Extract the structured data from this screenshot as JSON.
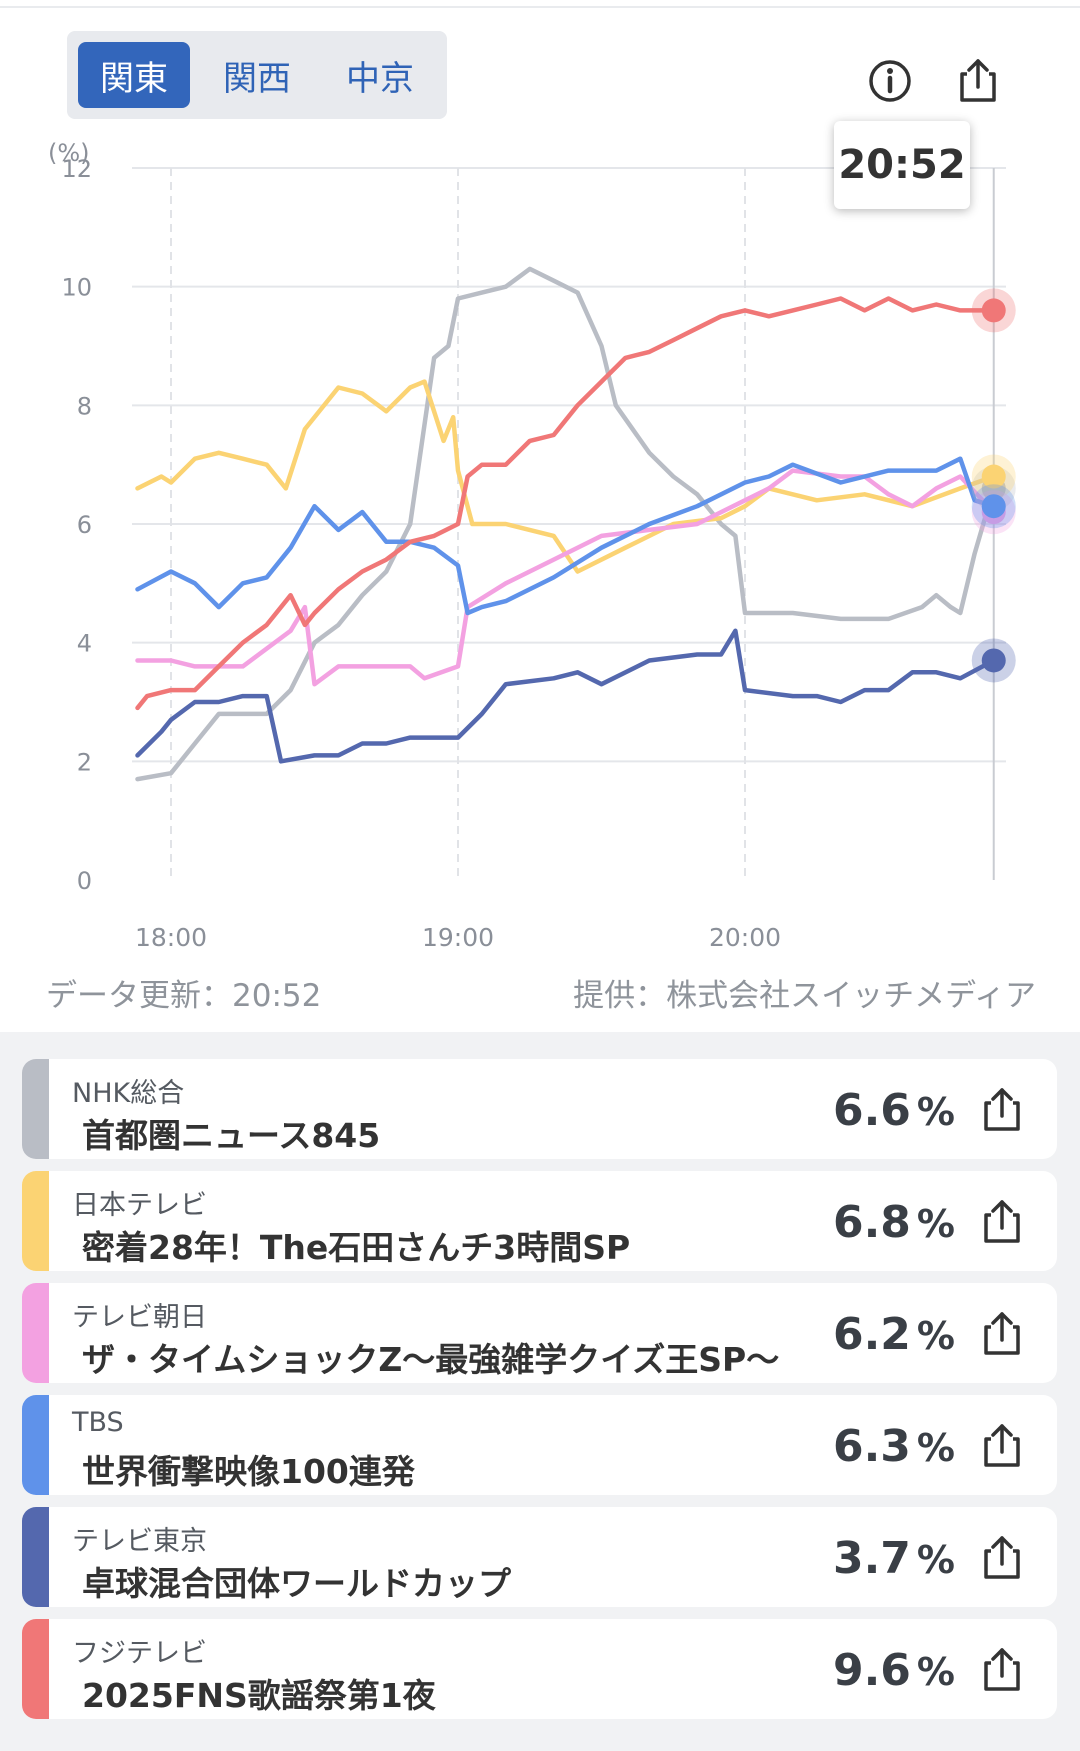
{
  "regions": {
    "tabs": [
      "関東",
      "関西",
      "中京"
    ],
    "active": "関東"
  },
  "toolbar": {
    "info_icon": "info-circle-icon",
    "share_icon": "share-upload-icon"
  },
  "tooltip": {
    "time": "20:52"
  },
  "footer": {
    "updated": "データ更新：20:52",
    "provider": "提供：株式会社スイッチメディア"
  },
  "chart_data": {
    "type": "line",
    "ylabel": "(%)",
    "ylim": [
      0,
      12
    ],
    "yticks": [
      "0",
      "2",
      "4",
      "6",
      "8",
      "10",
      "12"
    ],
    "xlabel": "",
    "xrange": [
      "17:53",
      "20:52"
    ],
    "xticks": [
      "18:00",
      "19:00",
      "20:00"
    ],
    "grid": true,
    "series": [
      {
        "name": "NHK総合",
        "color": "#b9bdc5",
        "points": [
          [
            "17:53",
            1.7
          ],
          [
            "18:00",
            1.8
          ],
          [
            "18:05",
            2.3
          ],
          [
            "18:10",
            2.8
          ],
          [
            "18:15",
            2.8
          ],
          [
            "18:20",
            2.8
          ],
          [
            "18:25",
            3.2
          ],
          [
            "18:30",
            4.0
          ],
          [
            "18:35",
            4.3
          ],
          [
            "18:40",
            4.8
          ],
          [
            "18:45",
            5.2
          ],
          [
            "18:50",
            6.0
          ],
          [
            "18:55",
            8.8
          ],
          [
            "18:58",
            9.0
          ],
          [
            "19:00",
            9.8
          ],
          [
            "19:05",
            9.9
          ],
          [
            "19:10",
            10.0
          ],
          [
            "19:15",
            10.3
          ],
          [
            "19:20",
            10.1
          ],
          [
            "19:25",
            9.9
          ],
          [
            "19:30",
            9.0
          ],
          [
            "19:33",
            8.0
          ],
          [
            "19:40",
            7.2
          ],
          [
            "19:45",
            6.8
          ],
          [
            "19:50",
            6.5
          ],
          [
            "19:55",
            6.0
          ],
          [
            "19:58",
            5.8
          ],
          [
            "20:00",
            4.5
          ],
          [
            "20:10",
            4.5
          ],
          [
            "20:20",
            4.4
          ],
          [
            "20:30",
            4.4
          ],
          [
            "20:37",
            4.6
          ],
          [
            "20:40",
            4.8
          ],
          [
            "20:43",
            4.6
          ],
          [
            "20:45",
            4.5
          ],
          [
            "20:48",
            5.5
          ],
          [
            "20:52",
            6.6
          ]
        ]
      },
      {
        "name": "日本テレビ",
        "color": "#fbd373",
        "points": [
          [
            "17:53",
            6.6
          ],
          [
            "17:58",
            6.8
          ],
          [
            "18:00",
            6.7
          ],
          [
            "18:05",
            7.1
          ],
          [
            "18:10",
            7.2
          ],
          [
            "18:15",
            7.1
          ],
          [
            "18:20",
            7.0
          ],
          [
            "18:24",
            6.6
          ],
          [
            "18:28",
            7.6
          ],
          [
            "18:35",
            8.3
          ],
          [
            "18:40",
            8.2
          ],
          [
            "18:45",
            7.9
          ],
          [
            "18:50",
            8.3
          ],
          [
            "18:53",
            8.4
          ],
          [
            "18:57",
            7.4
          ],
          [
            "18:59",
            7.8
          ],
          [
            "19:00",
            6.9
          ],
          [
            "19:03",
            6.0
          ],
          [
            "19:10",
            6.0
          ],
          [
            "19:20",
            5.8
          ],
          [
            "19:25",
            5.2
          ],
          [
            "19:35",
            5.6
          ],
          [
            "19:45",
            6.0
          ],
          [
            "19:55",
            6.1
          ],
          [
            "20:00",
            6.3
          ],
          [
            "20:05",
            6.6
          ],
          [
            "20:15",
            6.4
          ],
          [
            "20:25",
            6.5
          ],
          [
            "20:35",
            6.3
          ],
          [
            "20:45",
            6.6
          ],
          [
            "20:52",
            6.8
          ]
        ]
      },
      {
        "name": "テレビ朝日",
        "color": "#f3a1e1",
        "points": [
          [
            "17:53",
            3.7
          ],
          [
            "18:00",
            3.7
          ],
          [
            "18:05",
            3.6
          ],
          [
            "18:15",
            3.6
          ],
          [
            "18:25",
            4.2
          ],
          [
            "18:28",
            4.6
          ],
          [
            "18:30",
            3.3
          ],
          [
            "18:35",
            3.6
          ],
          [
            "18:45",
            3.6
          ],
          [
            "18:50",
            3.6
          ],
          [
            "18:53",
            3.4
          ],
          [
            "19:00",
            3.6
          ],
          [
            "19:02",
            4.6
          ],
          [
            "19:10",
            5.0
          ],
          [
            "19:20",
            5.4
          ],
          [
            "19:30",
            5.8
          ],
          [
            "19:40",
            5.9
          ],
          [
            "19:50",
            6.0
          ],
          [
            "20:00",
            6.4
          ],
          [
            "20:05",
            6.6
          ],
          [
            "20:10",
            6.9
          ],
          [
            "20:20",
            6.8
          ],
          [
            "20:25",
            6.8
          ],
          [
            "20:30",
            6.5
          ],
          [
            "20:35",
            6.3
          ],
          [
            "20:40",
            6.6
          ],
          [
            "20:45",
            6.8
          ],
          [
            "20:52",
            6.2
          ]
        ]
      },
      {
        "name": "TBS",
        "color": "#5f92ea",
        "points": [
          [
            "17:53",
            4.9
          ],
          [
            "18:00",
            5.2
          ],
          [
            "18:05",
            5.0
          ],
          [
            "18:10",
            4.6
          ],
          [
            "18:15",
            5.0
          ],
          [
            "18:20",
            5.1
          ],
          [
            "18:25",
            5.6
          ],
          [
            "18:30",
            6.3
          ],
          [
            "18:35",
            5.9
          ],
          [
            "18:40",
            6.2
          ],
          [
            "18:45",
            5.7
          ],
          [
            "18:50",
            5.7
          ],
          [
            "18:55",
            5.6
          ],
          [
            "19:00",
            5.3
          ],
          [
            "19:02",
            4.5
          ],
          [
            "19:05",
            4.6
          ],
          [
            "19:10",
            4.7
          ],
          [
            "19:20",
            5.1
          ],
          [
            "19:30",
            5.6
          ],
          [
            "19:40",
            6.0
          ],
          [
            "19:50",
            6.3
          ],
          [
            "20:00",
            6.7
          ],
          [
            "20:05",
            6.8
          ],
          [
            "20:10",
            7.0
          ],
          [
            "20:20",
            6.7
          ],
          [
            "20:30",
            6.9
          ],
          [
            "20:40",
            6.9
          ],
          [
            "20:45",
            7.1
          ],
          [
            "20:48",
            6.4
          ],
          [
            "20:52",
            6.3
          ]
        ]
      },
      {
        "name": "テレビ東京",
        "color": "#5468ae",
        "points": [
          [
            "17:53",
            2.1
          ],
          [
            "17:58",
            2.5
          ],
          [
            "18:00",
            2.7
          ],
          [
            "18:05",
            3.0
          ],
          [
            "18:10",
            3.0
          ],
          [
            "18:15",
            3.1
          ],
          [
            "18:20",
            3.1
          ],
          [
            "18:23",
            2.0
          ],
          [
            "18:30",
            2.1
          ],
          [
            "18:35",
            2.1
          ],
          [
            "18:40",
            2.3
          ],
          [
            "18:45",
            2.3
          ],
          [
            "18:50",
            2.4
          ],
          [
            "18:55",
            2.4
          ],
          [
            "19:00",
            2.4
          ],
          [
            "19:05",
            2.8
          ],
          [
            "19:10",
            3.3
          ],
          [
            "19:20",
            3.4
          ],
          [
            "19:25",
            3.5
          ],
          [
            "19:30",
            3.3
          ],
          [
            "19:40",
            3.7
          ],
          [
            "19:50",
            3.8
          ],
          [
            "19:55",
            3.8
          ],
          [
            "19:58",
            4.2
          ],
          [
            "20:00",
            3.2
          ],
          [
            "20:10",
            3.1
          ],
          [
            "20:15",
            3.1
          ],
          [
            "20:20",
            3.0
          ],
          [
            "20:25",
            3.2
          ],
          [
            "20:30",
            3.2
          ],
          [
            "20:35",
            3.5
          ],
          [
            "20:40",
            3.5
          ],
          [
            "20:45",
            3.4
          ],
          [
            "20:52",
            3.7
          ]
        ]
      },
      {
        "name": "フジテレビ",
        "color": "#f07777",
        "points": [
          [
            "17:53",
            2.9
          ],
          [
            "17:55",
            3.1
          ],
          [
            "18:00",
            3.2
          ],
          [
            "18:05",
            3.2
          ],
          [
            "18:10",
            3.6
          ],
          [
            "18:15",
            4.0
          ],
          [
            "18:20",
            4.3
          ],
          [
            "18:25",
            4.8
          ],
          [
            "18:28",
            4.3
          ],
          [
            "18:30",
            4.5
          ],
          [
            "18:35",
            4.9
          ],
          [
            "18:40",
            5.2
          ],
          [
            "18:45",
            5.4
          ],
          [
            "18:50",
            5.7
          ],
          [
            "18:55",
            5.8
          ],
          [
            "19:00",
            6.0
          ],
          [
            "19:02",
            6.8
          ],
          [
            "19:05",
            7.0
          ],
          [
            "19:10",
            7.0
          ],
          [
            "19:15",
            7.4
          ],
          [
            "19:20",
            7.5
          ],
          [
            "19:25",
            8.0
          ],
          [
            "19:30",
            8.4
          ],
          [
            "19:35",
            8.8
          ],
          [
            "19:40",
            8.9
          ],
          [
            "19:45",
            9.1
          ],
          [
            "19:50",
            9.3
          ],
          [
            "19:55",
            9.5
          ],
          [
            "20:00",
            9.6
          ],
          [
            "20:05",
            9.5
          ],
          [
            "20:10",
            9.6
          ],
          [
            "20:15",
            9.7
          ],
          [
            "20:20",
            9.8
          ],
          [
            "20:25",
            9.6
          ],
          [
            "20:30",
            9.8
          ],
          [
            "20:35",
            9.6
          ],
          [
            "20:40",
            9.7
          ],
          [
            "20:45",
            9.6
          ],
          [
            "20:52",
            9.6
          ]
        ]
      }
    ]
  },
  "programs": [
    {
      "channel": "NHK総合",
      "title": "首都圏ニュース845",
      "rating": "6.6",
      "unit": "%",
      "color": "#b9bdc5"
    },
    {
      "channel": "日本テレビ",
      "title": "密着28年！The石田さんチ3時間SP",
      "rating": "6.8",
      "unit": "%",
      "color": "#fbd373"
    },
    {
      "channel": "テレビ朝日",
      "title": "ザ・タイムショックZ〜最強雑学クイズ王SP〜",
      "rating": "6.2",
      "unit": "%",
      "color": "#f3a1e1"
    },
    {
      "channel": "TBS",
      "title": "世界衝撃映像100連発",
      "rating": "6.3",
      "unit": "%",
      "color": "#5f92ea"
    },
    {
      "channel": "テレビ東京",
      "title": "卓球混合団体ワールドカップ",
      "rating": "3.7",
      "unit": "%",
      "color": "#5468ae"
    },
    {
      "channel": "フジテレビ",
      "title": "2025FNS歌謡祭第1夜",
      "rating": "9.6",
      "unit": "%",
      "color": "#f07777"
    }
  ]
}
